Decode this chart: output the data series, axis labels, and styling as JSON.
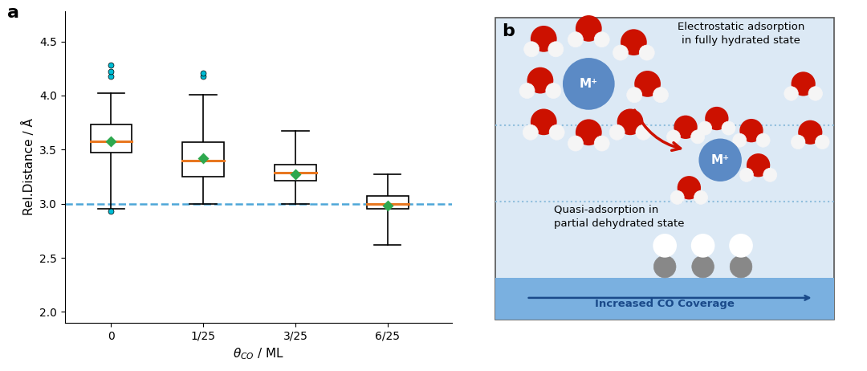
{
  "panel_a_label": "a",
  "panel_b_label": "b",
  "ylabel": "Rel.Distance / Å",
  "xtick_labels": [
    "0",
    "1/25",
    "3/25",
    "6/25"
  ],
  "ytick_vals": [
    2.0,
    2.5,
    3.0,
    3.5,
    4.0,
    4.5
  ],
  "ylim": [
    1.9,
    4.78
  ],
  "dashed_line_y": 3.0,
  "dashed_line_color": "#4da6d8",
  "boxes": [
    {
      "x": 1,
      "q1": 3.47,
      "median": 3.58,
      "q3": 3.73,
      "whisker_low": 2.95,
      "whisker_high": 4.02,
      "mean": 3.58,
      "fliers_high": [
        4.18,
        4.22,
        4.28
      ],
      "fliers_low": [
        2.93
      ]
    },
    {
      "x": 2,
      "q1": 3.25,
      "median": 3.4,
      "q3": 3.57,
      "whisker_low": 3.0,
      "whisker_high": 4.01,
      "mean": 3.42,
      "fliers_high": [
        4.18,
        4.21
      ],
      "fliers_low": []
    },
    {
      "x": 3,
      "q1": 3.21,
      "median": 3.29,
      "q3": 3.36,
      "whisker_low": 3.0,
      "whisker_high": 3.67,
      "mean": 3.27,
      "fliers_high": [],
      "fliers_low": []
    },
    {
      "x": 4,
      "q1": 2.95,
      "median": 3.0,
      "q3": 3.07,
      "whisker_low": 2.62,
      "whisker_high": 3.27,
      "mean": 2.98,
      "fliers_high": [],
      "fliers_low": []
    }
  ],
  "box_color": "black",
  "median_color": "#e87720",
  "mean_color": "#2ea84e",
  "mean_marker": "D",
  "mean_markersize": 7,
  "flier_color": "#00bcd4",
  "flier_markersize": 5,
  "box_width": 0.45,
  "background_color": "#ffffff",
  "panel_b_bg": "#dce9f5",
  "panel_b_dotted_color": "#90bedd",
  "panel_b_surface_color": "#7ab0e0",
  "text_electrostatic": "Electrostatic adsorption\nin fully hydrated state",
  "text_quasi": "Quasi-adsorption in\npartial dehydrated state",
  "text_coverage": "Increased CO Coverage",
  "ion_color": "#5b8ac5",
  "water_O_color": "#cc1100",
  "water_H_color": "#f5f5f5",
  "co_gray_color": "#888888",
  "co_outline_color": "#cc1100"
}
